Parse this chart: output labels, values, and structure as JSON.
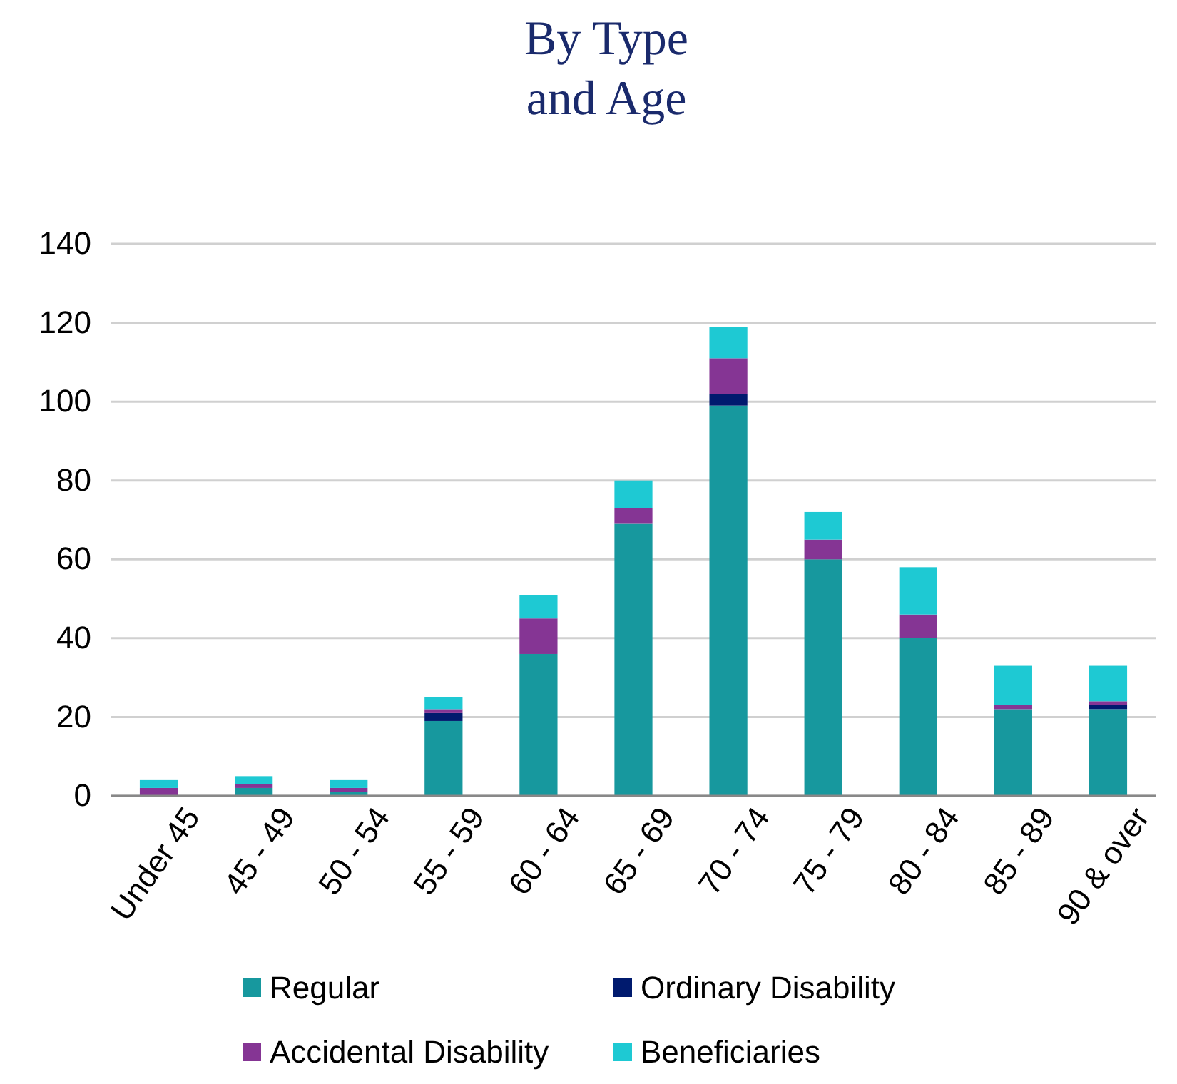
{
  "chart_data": {
    "type": "bar",
    "title": "By Type\nand Age",
    "stacked": true,
    "categories": [
      "Under 45",
      "45 - 49",
      "50 - 54",
      "55 - 59",
      "60 - 64",
      "65 - 69",
      "70 - 74",
      "75 - 79",
      "80 - 84",
      "85 - 89",
      "90 & over"
    ],
    "series": [
      {
        "name": "Regular",
        "color": "#17989e",
        "values": [
          0,
          2,
          1,
          19,
          36,
          69,
          99,
          60,
          40,
          22,
          22
        ]
      },
      {
        "name": "Ordinary Disability",
        "color": "#001a6e",
        "values": [
          0,
          0,
          0,
          2,
          0,
          0,
          3,
          0,
          0,
          0,
          1
        ]
      },
      {
        "name": "Accidental Disability",
        "color": "#853594",
        "values": [
          2,
          1,
          1,
          1,
          9,
          4,
          9,
          5,
          6,
          1,
          1
        ]
      },
      {
        "name": "Beneficiaries",
        "color": "#1ec9d3",
        "values": [
          2,
          2,
          2,
          3,
          6,
          7,
          8,
          7,
          12,
          10,
          9
        ]
      }
    ],
    "ylim": [
      0,
      140
    ],
    "yticks": [
      0,
      20,
      40,
      60,
      80,
      100,
      120,
      140
    ],
    "grid": "y",
    "legend": "bottom"
  }
}
